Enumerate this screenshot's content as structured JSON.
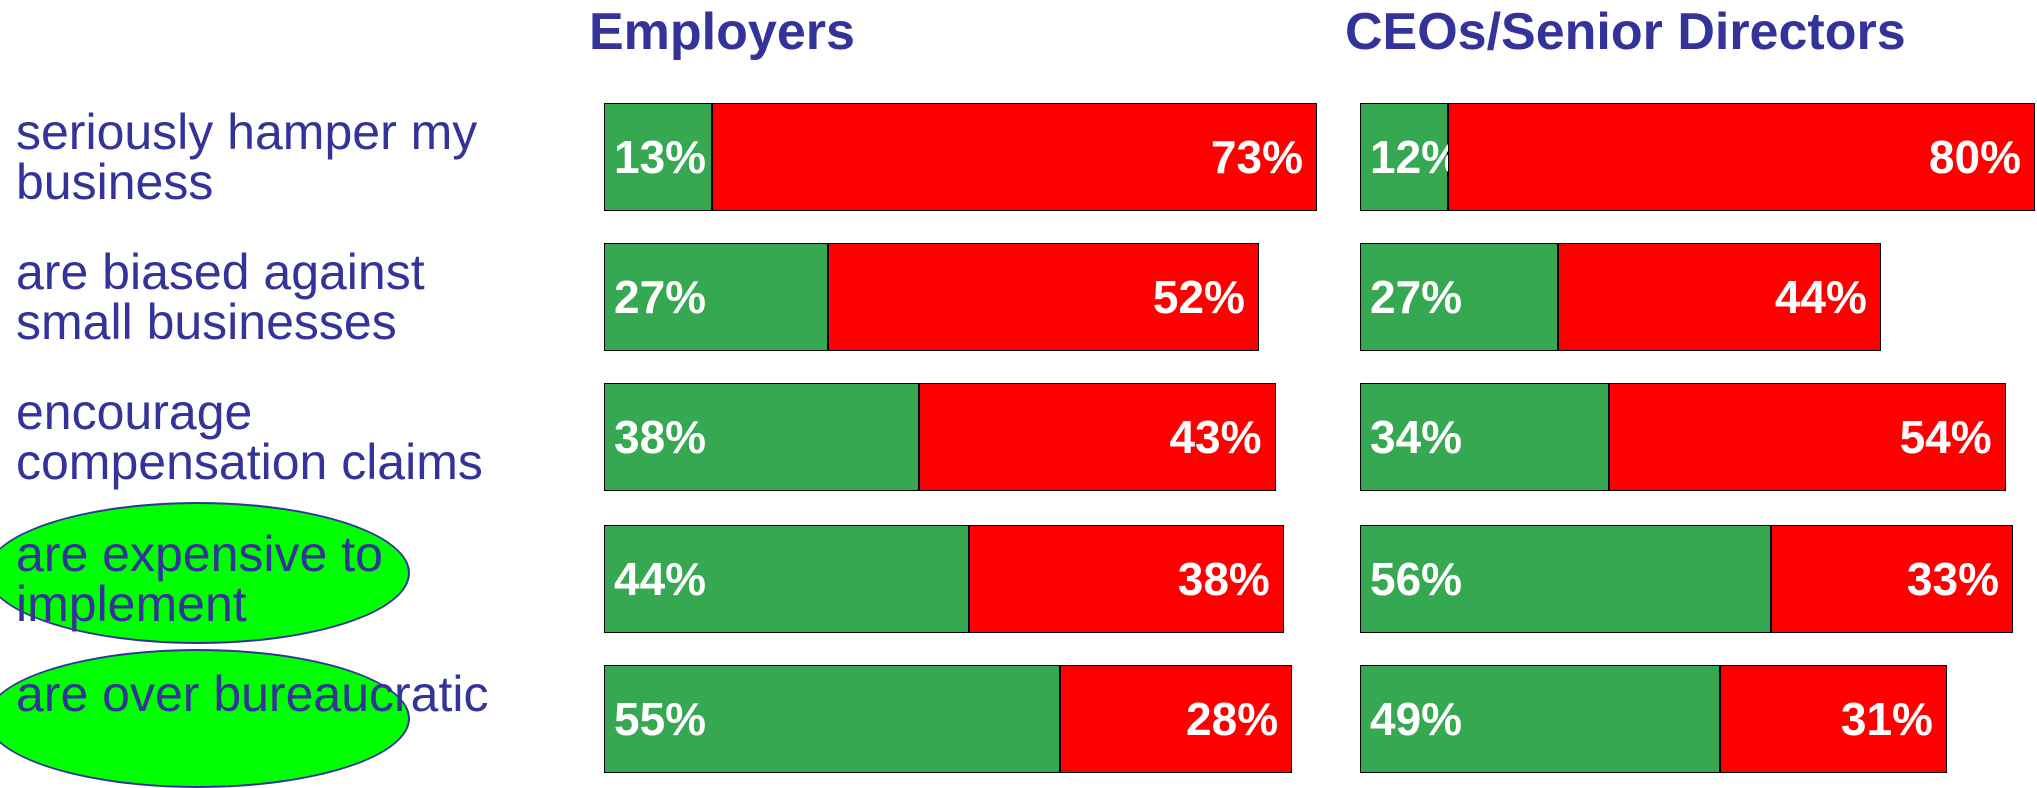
{
  "chart_data": [
    {
      "type": "bar",
      "orientation": "horizontal",
      "stacked": true,
      "title": "Employers",
      "categories": [
        "seriously hamper my business",
        "are biased against small businesses",
        "encourage compensation claims",
        "are expensive to implement",
        "are over bureaucratic"
      ],
      "series": [
        {
          "color": "#36a852",
          "values": [
            13,
            27,
            38,
            44,
            55
          ],
          "value_labels": [
            "13%",
            "27%",
            "38%",
            "44%",
            "55%"
          ]
        },
        {
          "color": "#ff0000",
          "values": [
            73,
            52,
            43,
            38,
            28
          ],
          "value_labels": [
            "73%",
            "52%",
            "43%",
            "38%",
            "28%"
          ]
        }
      ]
    },
    {
      "type": "bar",
      "orientation": "horizontal",
      "stacked": true,
      "title": "CEOs/Senior Directors",
      "categories": [
        "seriously hamper my business",
        "are biased against small businesses",
        "encourage compensation claims",
        "are expensive to implement",
        "are over bureaucratic"
      ],
      "series": [
        {
          "color": "#36a852",
          "values": [
            12,
            27,
            34,
            56,
            49
          ],
          "value_labels": [
            "12%",
            "27%",
            "34%",
            "56%",
            "49%"
          ]
        },
        {
          "color": "#ff0000",
          "values": [
            80,
            44,
            54,
            33,
            31
          ],
          "value_labels": [
            "80%",
            "44%",
            "54%",
            "33%",
            "31%"
          ]
        }
      ]
    }
  ]
}
